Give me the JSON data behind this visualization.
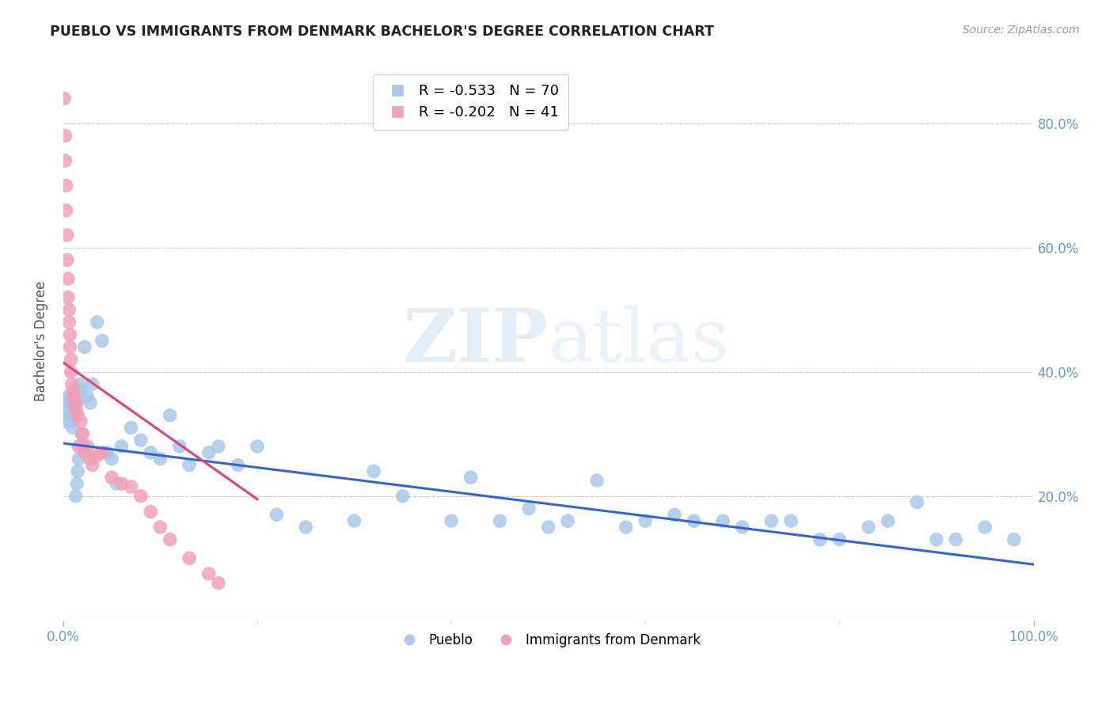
{
  "title": "PUEBLO VS IMMIGRANTS FROM DENMARK BACHELOR'S DEGREE CORRELATION CHART",
  "source": "Source: ZipAtlas.com",
  "ylabel": "Bachelor's Degree",
  "watermark_zip": "ZIP",
  "watermark_atlas": "atlas",
  "legend_blue_r": "R = -0.533",
  "legend_blue_n": "N = 70",
  "legend_pink_r": "R = -0.202",
  "legend_pink_n": "N = 41",
  "blue_color": "#a8c8e8",
  "pink_color": "#f0a0b8",
  "blue_line_color": "#3366cc",
  "pink_line_color": "#dd4477",
  "axis_label_color": "#6699cc",
  "grid_color": "#cccccc",
  "title_color": "#222222",
  "source_color": "#999999",
  "blue_scatter_x": [
    0.001,
    0.002,
    0.003,
    0.004,
    0.005,
    0.006,
    0.007,
    0.008,
    0.009,
    0.01,
    0.011,
    0.012,
    0.013,
    0.014,
    0.015,
    0.016,
    0.017,
    0.018,
    0.019,
    0.02,
    0.022,
    0.025,
    0.028,
    0.03,
    0.035,
    0.04,
    0.045,
    0.05,
    0.055,
    0.06,
    0.07,
    0.08,
    0.09,
    0.1,
    0.11,
    0.12,
    0.13,
    0.15,
    0.16,
    0.18,
    0.2,
    0.22,
    0.25,
    0.3,
    0.32,
    0.35,
    0.4,
    0.42,
    0.45,
    0.48,
    0.5,
    0.52,
    0.55,
    0.58,
    0.6,
    0.63,
    0.65,
    0.68,
    0.7,
    0.73,
    0.75,
    0.78,
    0.8,
    0.83,
    0.85,
    0.88,
    0.9,
    0.92,
    0.95,
    0.98
  ],
  "blue_scatter_y": [
    0.33,
    0.34,
    0.32,
    0.35,
    0.36,
    0.34,
    0.33,
    0.35,
    0.32,
    0.31,
    0.34,
    0.35,
    0.2,
    0.22,
    0.24,
    0.26,
    0.38,
    0.37,
    0.3,
    0.28,
    0.44,
    0.36,
    0.35,
    0.38,
    0.48,
    0.45,
    0.27,
    0.26,
    0.22,
    0.28,
    0.31,
    0.29,
    0.27,
    0.26,
    0.33,
    0.28,
    0.25,
    0.27,
    0.28,
    0.25,
    0.28,
    0.17,
    0.15,
    0.16,
    0.24,
    0.2,
    0.16,
    0.23,
    0.16,
    0.18,
    0.15,
    0.16,
    0.225,
    0.15,
    0.16,
    0.17,
    0.16,
    0.16,
    0.15,
    0.16,
    0.16,
    0.13,
    0.13,
    0.15,
    0.16,
    0.19,
    0.13,
    0.13,
    0.15,
    0.13
  ],
  "pink_scatter_x": [
    0.001,
    0.002,
    0.002,
    0.003,
    0.003,
    0.004,
    0.004,
    0.005,
    0.005,
    0.006,
    0.006,
    0.007,
    0.007,
    0.008,
    0.008,
    0.009,
    0.01,
    0.011,
    0.012,
    0.013,
    0.014,
    0.015,
    0.016,
    0.018,
    0.02,
    0.022,
    0.025,
    0.028,
    0.03,
    0.035,
    0.04,
    0.05,
    0.06,
    0.07,
    0.08,
    0.09,
    0.1,
    0.11,
    0.13,
    0.15,
    0.16
  ],
  "pink_scatter_y": [
    0.84,
    0.78,
    0.74,
    0.7,
    0.66,
    0.62,
    0.58,
    0.55,
    0.52,
    0.5,
    0.48,
    0.46,
    0.44,
    0.42,
    0.4,
    0.38,
    0.37,
    0.36,
    0.35,
    0.34,
    0.35,
    0.33,
    0.28,
    0.32,
    0.3,
    0.27,
    0.28,
    0.26,
    0.25,
    0.265,
    0.27,
    0.23,
    0.22,
    0.215,
    0.2,
    0.175,
    0.15,
    0.13,
    0.1,
    0.075,
    0.06
  ],
  "xlim": [
    0.0,
    1.0
  ],
  "ylim": [
    0.0,
    0.9
  ],
  "xtick_positions": [
    0.0,
    1.0
  ],
  "xtick_labels": [
    "0.0%",
    "100.0%"
  ],
  "xtick_minor_positions": [
    0.2,
    0.4,
    0.6,
    0.8
  ],
  "ytick_positions": [
    0.0,
    0.2,
    0.4,
    0.6,
    0.8
  ],
  "ytick_labels_right": [
    "",
    "20.0%",
    "40.0%",
    "60.0%",
    "80.0%"
  ],
  "blue_trend_x0": 0.0,
  "blue_trend_x1": 1.0,
  "blue_trend_y0": 0.285,
  "blue_trend_y1": 0.09,
  "pink_trend_x0": 0.0,
  "pink_trend_x1": 0.2,
  "pink_trend_y0": 0.415,
  "pink_trend_y1": 0.195
}
